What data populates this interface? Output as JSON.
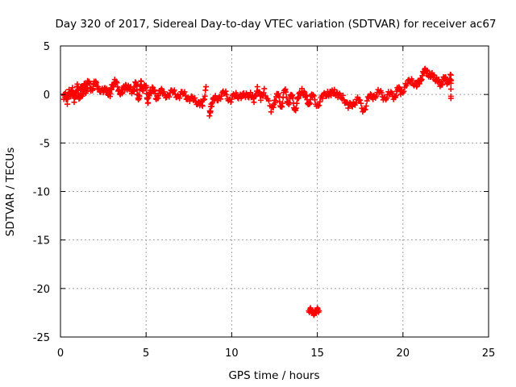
{
  "chart_data": {
    "type": "scatter",
    "title": "Day 320 of 2017, Sidereal Day-to-day VTEC variation (SDTVAR) for receiver ac67",
    "xlabel": "GPS time / hours",
    "ylabel": "SDTVAR / TECUs",
    "xlim": [
      0,
      25
    ],
    "ylim": [
      -25,
      5
    ],
    "xticks": [
      "0",
      "5",
      "10",
      "15",
      "20",
      "25"
    ],
    "yticks": [
      "5",
      "0",
      "-5",
      "-10",
      "-15",
      "-20",
      "-25"
    ],
    "grid": true,
    "marker": "+",
    "series": [
      {
        "name": "SDTVAR",
        "color": "#ff0000",
        "points": [
          [
            0.2,
            -0.5
          ],
          [
            0.3,
            0.2
          ],
          [
            0.4,
            -1.0
          ],
          [
            0.5,
            0.5
          ],
          [
            0.6,
            -0.2
          ],
          [
            0.7,
            0.7
          ],
          [
            0.8,
            -0.8
          ],
          [
            0.9,
            0.3
          ],
          [
            1.0,
            0.8
          ],
          [
            1.1,
            -0.3
          ],
          [
            1.2,
            0.6
          ],
          [
            1.3,
            0.1
          ],
          [
            1.4,
            0.9
          ],
          [
            1.5,
            0.4
          ],
          [
            1.6,
            1.2
          ],
          [
            1.8,
            0.6
          ],
          [
            2.0,
            1.1
          ],
          [
            2.2,
            0.8
          ],
          [
            2.5,
            0.2
          ],
          [
            2.7,
            0.6
          ],
          [
            2.9,
            -0.2
          ],
          [
            3.0,
            1.0
          ],
          [
            3.2,
            1.3
          ],
          [
            3.4,
            0.5
          ],
          [
            3.6,
            0.1
          ],
          [
            3.8,
            1.0
          ],
          [
            4.0,
            0.6
          ],
          [
            4.2,
            0.3
          ],
          [
            4.4,
            1.2
          ],
          [
            4.5,
            0.0
          ],
          [
            4.6,
            -0.4
          ],
          [
            4.7,
            1.4
          ],
          [
            4.8,
            0.4
          ],
          [
            5.0,
            0.9
          ],
          [
            5.1,
            -0.9
          ],
          [
            5.2,
            0.2
          ],
          [
            5.4,
            0.7
          ],
          [
            5.6,
            -0.5
          ],
          [
            5.8,
            0.4
          ],
          [
            6.0,
            0.1
          ],
          [
            6.3,
            -0.1
          ],
          [
            6.6,
            0.3
          ],
          [
            6.9,
            -0.2
          ],
          [
            7.2,
            0.1
          ],
          [
            7.5,
            -0.4
          ],
          [
            7.8,
            -0.6
          ],
          [
            8.1,
            -0.8
          ],
          [
            8.3,
            -1.2
          ],
          [
            8.5,
            0.8
          ],
          [
            8.7,
            -2.2
          ],
          [
            8.8,
            -1.0
          ],
          [
            9.0,
            -0.5
          ],
          [
            9.3,
            -0.2
          ],
          [
            9.6,
            0.1
          ],
          [
            9.9,
            -0.5
          ],
          [
            10.2,
            -0.2
          ],
          [
            10.5,
            0.0
          ],
          [
            10.8,
            -0.3
          ],
          [
            11.1,
            0.2
          ],
          [
            11.3,
            -0.8
          ],
          [
            11.5,
            0.8
          ],
          [
            11.7,
            -0.6
          ],
          [
            11.9,
            0.6
          ],
          [
            12.3,
            -1.8
          ],
          [
            12.5,
            -0.6
          ],
          [
            12.7,
            -0.1
          ],
          [
            12.9,
            -1.2
          ],
          [
            13.1,
            0.4
          ],
          [
            13.3,
            -0.8
          ],
          [
            13.5,
            -0.2
          ],
          [
            13.7,
            -1.5
          ],
          [
            13.9,
            -0.4
          ],
          [
            14.1,
            0.6
          ],
          [
            14.3,
            -0.3
          ],
          [
            14.5,
            -0.8
          ],
          [
            14.7,
            -0.2
          ],
          [
            15.0,
            -1.0
          ],
          [
            15.3,
            -0.4
          ],
          [
            15.6,
            0.3
          ],
          [
            15.8,
            -0.1
          ],
          [
            16.0,
            0.5
          ],
          [
            16.2,
            -0.3
          ],
          [
            16.5,
            -0.1
          ],
          [
            16.8,
            -1.4
          ],
          [
            17.1,
            -0.8
          ],
          [
            17.4,
            -0.6
          ],
          [
            17.7,
            -1.6
          ],
          [
            18.0,
            -0.4
          ],
          [
            18.3,
            -0.1
          ],
          [
            18.6,
            0.2
          ],
          [
            18.9,
            -0.3
          ],
          [
            19.2,
            0.0
          ],
          [
            19.5,
            -0.2
          ],
          [
            19.7,
            0.5
          ],
          [
            19.9,
            0.3
          ],
          [
            20.2,
            0.9
          ],
          [
            20.5,
            1.6
          ],
          [
            20.8,
            0.8
          ],
          [
            21.0,
            1.5
          ],
          [
            21.2,
            2.2
          ],
          [
            21.4,
            2.5
          ],
          [
            21.6,
            1.8
          ],
          [
            21.8,
            2.0
          ],
          [
            22.0,
            1.4
          ],
          [
            22.2,
            1.0
          ],
          [
            22.4,
            1.7
          ],
          [
            22.6,
            1.2
          ],
          [
            22.8,
            2.0
          ],
          [
            22.8,
            -0.4
          ],
          [
            14.5,
            -22.3
          ],
          [
            14.7,
            -22.4
          ],
          [
            14.9,
            -22.4
          ],
          [
            15.1,
            -22.3
          ]
        ]
      }
    ]
  }
}
